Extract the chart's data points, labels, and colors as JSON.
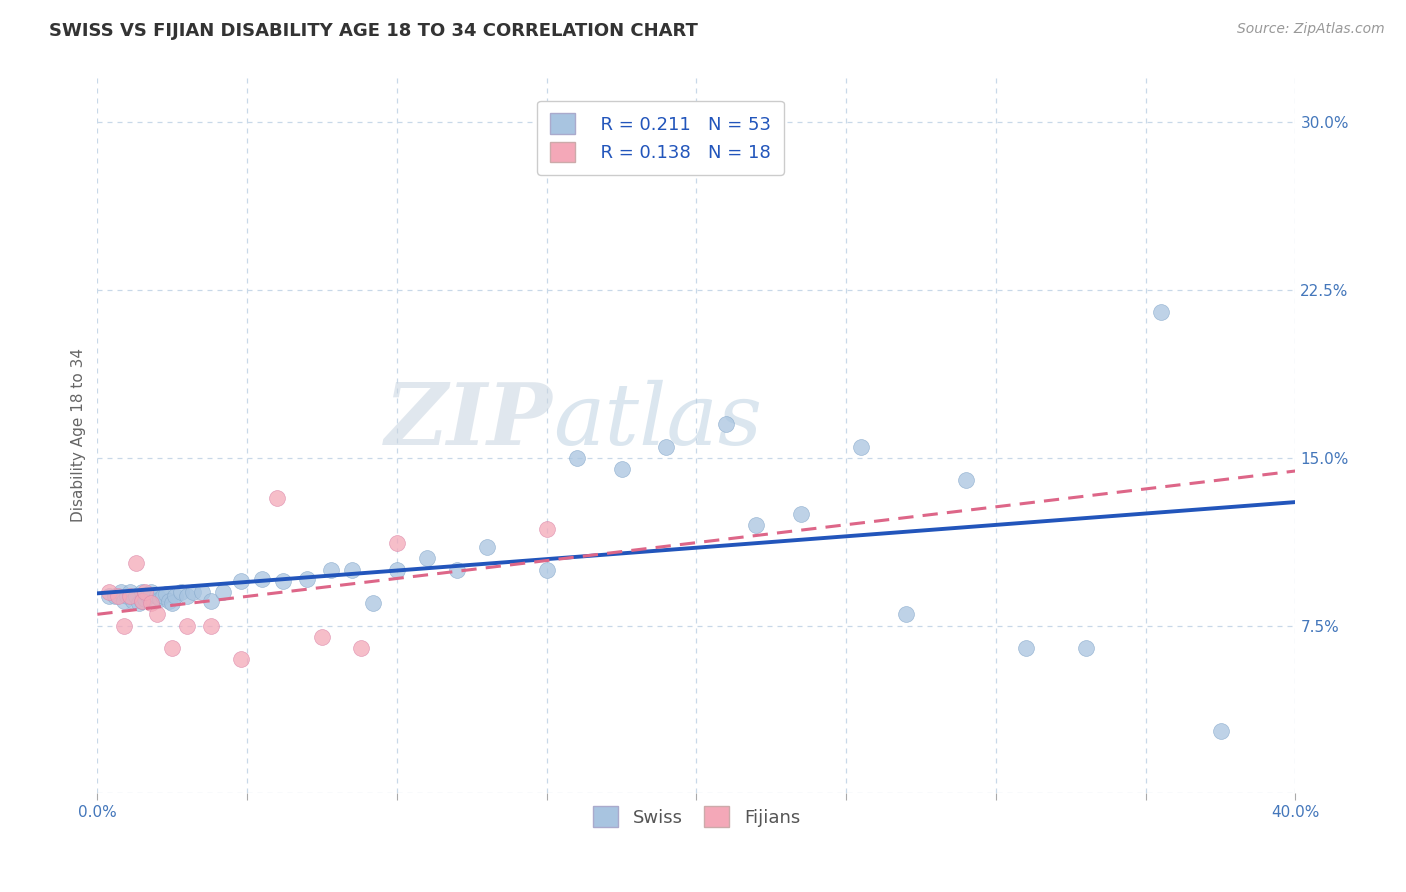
{
  "title": "SWISS VS FIJIAN DISABILITY AGE 18 TO 34 CORRELATION CHART",
  "source": "Source: ZipAtlas.com",
  "ylabel_label": "Disability Age 18 to 34",
  "xlim": [
    0.0,
    0.4
  ],
  "ylim": [
    0.0,
    0.32
  ],
  "xticks": [
    0.0,
    0.05,
    0.1,
    0.15,
    0.2,
    0.25,
    0.3,
    0.35,
    0.4
  ],
  "xticklabels": [
    "0.0%",
    "",
    "",
    "",
    "",
    "",
    "",
    "",
    "40.0%"
  ],
  "yticks": [
    0.0,
    0.075,
    0.15,
    0.225,
    0.3
  ],
  "yticklabels": [
    "",
    "7.5%",
    "15.0%",
    "22.5%",
    "30.0%"
  ],
  "grid_color": "#c8d8e8",
  "background_color": "#ffffff",
  "swiss_color": "#a8c4e0",
  "fijian_color": "#f4a8b8",
  "swiss_line_color": "#2255bb",
  "fijian_line_color": "#dd6688",
  "legend_r_swiss": "R = 0.211",
  "legend_n_swiss": "N = 53",
  "legend_r_fijian": "R = 0.138",
  "legend_n_fijian": "N = 18",
  "swiss_x": [
    0.004,
    0.006,
    0.008,
    0.009,
    0.01,
    0.011,
    0.012,
    0.013,
    0.014,
    0.015,
    0.015,
    0.016,
    0.017,
    0.018,
    0.019,
    0.02,
    0.021,
    0.022,
    0.023,
    0.024,
    0.025,
    0.026,
    0.028,
    0.03,
    0.032,
    0.035,
    0.038,
    0.042,
    0.048,
    0.055,
    0.062,
    0.07,
    0.078,
    0.085,
    0.092,
    0.1,
    0.11,
    0.12,
    0.13,
    0.15,
    0.16,
    0.175,
    0.19,
    0.21,
    0.22,
    0.235,
    0.255,
    0.27,
    0.29,
    0.31,
    0.33,
    0.355,
    0.375
  ],
  "swiss_y": [
    0.088,
    0.088,
    0.09,
    0.086,
    0.088,
    0.09,
    0.086,
    0.088,
    0.085,
    0.086,
    0.09,
    0.087,
    0.088,
    0.09,
    0.086,
    0.088,
    0.087,
    0.088,
    0.089,
    0.086,
    0.085,
    0.088,
    0.09,
    0.088,
    0.09,
    0.09,
    0.086,
    0.09,
    0.095,
    0.096,
    0.095,
    0.096,
    0.1,
    0.1,
    0.085,
    0.1,
    0.105,
    0.1,
    0.11,
    0.1,
    0.15,
    0.145,
    0.155,
    0.165,
    0.12,
    0.125,
    0.155,
    0.08,
    0.14,
    0.065,
    0.065,
    0.215,
    0.028
  ],
  "fijian_x": [
    0.004,
    0.007,
    0.009,
    0.011,
    0.013,
    0.015,
    0.016,
    0.018,
    0.02,
    0.025,
    0.03,
    0.038,
    0.048,
    0.06,
    0.075,
    0.088,
    0.1,
    0.15
  ],
  "fijian_y": [
    0.09,
    0.088,
    0.075,
    0.088,
    0.103,
    0.086,
    0.09,
    0.085,
    0.08,
    0.065,
    0.075,
    0.075,
    0.06,
    0.132,
    0.07,
    0.065,
    0.112,
    0.118
  ],
  "watermark_zip": "ZIP",
  "watermark_atlas": "atlas",
  "title_fontsize": 13,
  "axis_label_fontsize": 11,
  "tick_fontsize": 11,
  "source_fontsize": 10,
  "legend_fontsize": 13
}
